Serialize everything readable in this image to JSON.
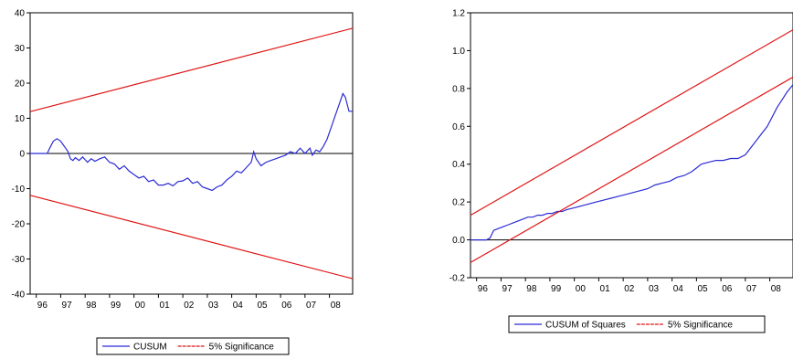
{
  "colors": {
    "cusum": "#2b2bd6",
    "significance": "#e01414",
    "axis": "#000000"
  },
  "chart_data": [
    {
      "type": "line",
      "title": "",
      "xlabel": "",
      "ylabel": "",
      "x_tick_labels": [
        "96",
        "97",
        "98",
        "99",
        "00",
        "01",
        "02",
        "03",
        "04",
        "05",
        "06",
        "07",
        "08"
      ],
      "y_ticks": [
        40,
        30,
        20,
        10,
        0,
        -10,
        -20,
        -30,
        -40
      ],
      "y_tick_labels": [
        "40",
        "30",
        "20",
        "10",
        "0",
        "-10",
        "-20",
        "-30",
        "-40"
      ],
      "xlim": [
        1995.75,
        2008.95
      ],
      "ylim": [
        -40,
        40
      ],
      "grid": false,
      "legend_position": "bottom",
      "series": [
        {
          "name": "CUSUM",
          "x": [
            1995.75,
            1996.0,
            1996.25,
            1996.45,
            1996.55,
            1996.7,
            1996.85,
            1997.0,
            1997.1,
            1997.2,
            1997.3,
            1997.4,
            1997.5,
            1997.6,
            1997.75,
            1997.9,
            1998.0,
            1998.1,
            1998.25,
            1998.4,
            1998.6,
            1998.8,
            1999.0,
            1999.2,
            1999.4,
            1999.6,
            1999.8,
            2000.0,
            2000.2,
            2000.4,
            2000.6,
            2000.8,
            2001.0,
            2001.2,
            2001.4,
            2001.6,
            2001.8,
            2002.0,
            2002.2,
            2002.4,
            2002.6,
            2002.8,
            2003.0,
            2003.2,
            2003.4,
            2003.6,
            2003.8,
            2004.0,
            2004.2,
            2004.4,
            2004.6,
            2004.8,
            2004.9,
            2005.0,
            2005.2,
            2005.4,
            2005.6,
            2005.8,
            2006.0,
            2006.2,
            2006.4,
            2006.6,
            2006.8,
            2007.0,
            2007.2,
            2007.3,
            2007.45,
            2007.6,
            2007.75,
            2007.9,
            2008.0,
            2008.15,
            2008.3,
            2008.45,
            2008.55,
            2008.65,
            2008.8,
            2008.95
          ],
          "values": [
            0,
            0,
            0,
            0,
            1.5,
            3.5,
            4.2,
            3.5,
            2.5,
            1.5,
            0.5,
            -1.5,
            -2,
            -1.2,
            -2,
            -1,
            -1.8,
            -2.5,
            -1.5,
            -2.2,
            -1.5,
            -1,
            -2.5,
            -3,
            -4.5,
            -3.5,
            -5,
            -6,
            -7,
            -6.5,
            -8,
            -7.5,
            -9,
            -9,
            -8.5,
            -9.2,
            -8,
            -7.8,
            -7,
            -8.5,
            -8,
            -9.5,
            -10,
            -10.5,
            -9.5,
            -9,
            -7.5,
            -6.5,
            -5,
            -5.5,
            -4,
            -2.5,
            0.5,
            -1.5,
            -3.5,
            -2.5,
            -2,
            -1.5,
            -1,
            -0.5,
            0.5,
            0,
            1.5,
            0,
            1.5,
            -0.5,
            1,
            0.5,
            2,
            4,
            6,
            9,
            12,
            15,
            17,
            16,
            12,
            12
          ]
        },
        {
          "name": "5% Significance",
          "x": [
            1995.75,
            2008.95
          ],
          "values": [
            11.9,
            35.6
          ]
        },
        {
          "name": "5% Significance",
          "x": [
            1995.75,
            2008.95
          ],
          "values": [
            -11.9,
            -35.6
          ]
        }
      ]
    },
    {
      "type": "line",
      "title": "",
      "xlabel": "",
      "ylabel": "",
      "x_tick_labels": [
        "96",
        "97",
        "98",
        "99",
        "00",
        "01",
        "02",
        "03",
        "04",
        "05",
        "06",
        "07",
        "08"
      ],
      "y_ticks": [
        1.2,
        1.0,
        0.8,
        0.6,
        0.4,
        0.2,
        0.0,
        -0.2
      ],
      "y_tick_labels": [
        "1.2",
        "1.0",
        "0.8",
        "0.6",
        "0.4",
        "0.2",
        "0.0",
        "-0.2"
      ],
      "xlim": [
        1995.75,
        2008.95
      ],
      "ylim": [
        -0.2,
        1.2
      ],
      "grid": false,
      "legend_position": "bottom",
      "series": [
        {
          "name": "CUSUM of Squares",
          "x": [
            1995.75,
            1996.0,
            1996.2,
            1996.4,
            1996.55,
            1996.7,
            1996.9,
            1997.1,
            1997.3,
            1997.5,
            1997.7,
            1997.9,
            1998.1,
            1998.3,
            1998.5,
            1998.7,
            1998.9,
            1999.1,
            1999.3,
            1999.5,
            1999.7,
            2000.0,
            2000.3,
            2000.6,
            2000.9,
            2001.2,
            2001.5,
            2001.8,
            2002.1,
            2002.4,
            2002.7,
            2003.0,
            2003.3,
            2003.6,
            2003.9,
            2004.2,
            2004.5,
            2004.8,
            2005.0,
            2005.2,
            2005.5,
            2005.8,
            2006.1,
            2006.4,
            2006.7,
            2007.0,
            2007.3,
            2007.6,
            2007.9,
            2008.1,
            2008.3,
            2008.5,
            2008.7,
            2008.95
          ],
          "values": [
            0.0,
            0.0,
            0.0,
            0.0,
            0.01,
            0.05,
            0.06,
            0.07,
            0.08,
            0.09,
            0.1,
            0.11,
            0.12,
            0.12,
            0.13,
            0.13,
            0.14,
            0.14,
            0.15,
            0.15,
            0.16,
            0.17,
            0.18,
            0.19,
            0.2,
            0.21,
            0.22,
            0.23,
            0.24,
            0.25,
            0.26,
            0.27,
            0.29,
            0.3,
            0.31,
            0.33,
            0.34,
            0.36,
            0.38,
            0.4,
            0.41,
            0.42,
            0.42,
            0.43,
            0.43,
            0.45,
            0.5,
            0.55,
            0.6,
            0.65,
            0.7,
            0.74,
            0.78,
            0.82
          ]
        },
        {
          "name": "5% Significance",
          "x": [
            1995.75,
            2008.95
          ],
          "values": [
            0.13,
            1.11
          ]
        },
        {
          "name": "5% Significance",
          "x": [
            1995.75,
            2008.95
          ],
          "values": [
            -0.12,
            0.86
          ]
        }
      ]
    }
  ]
}
